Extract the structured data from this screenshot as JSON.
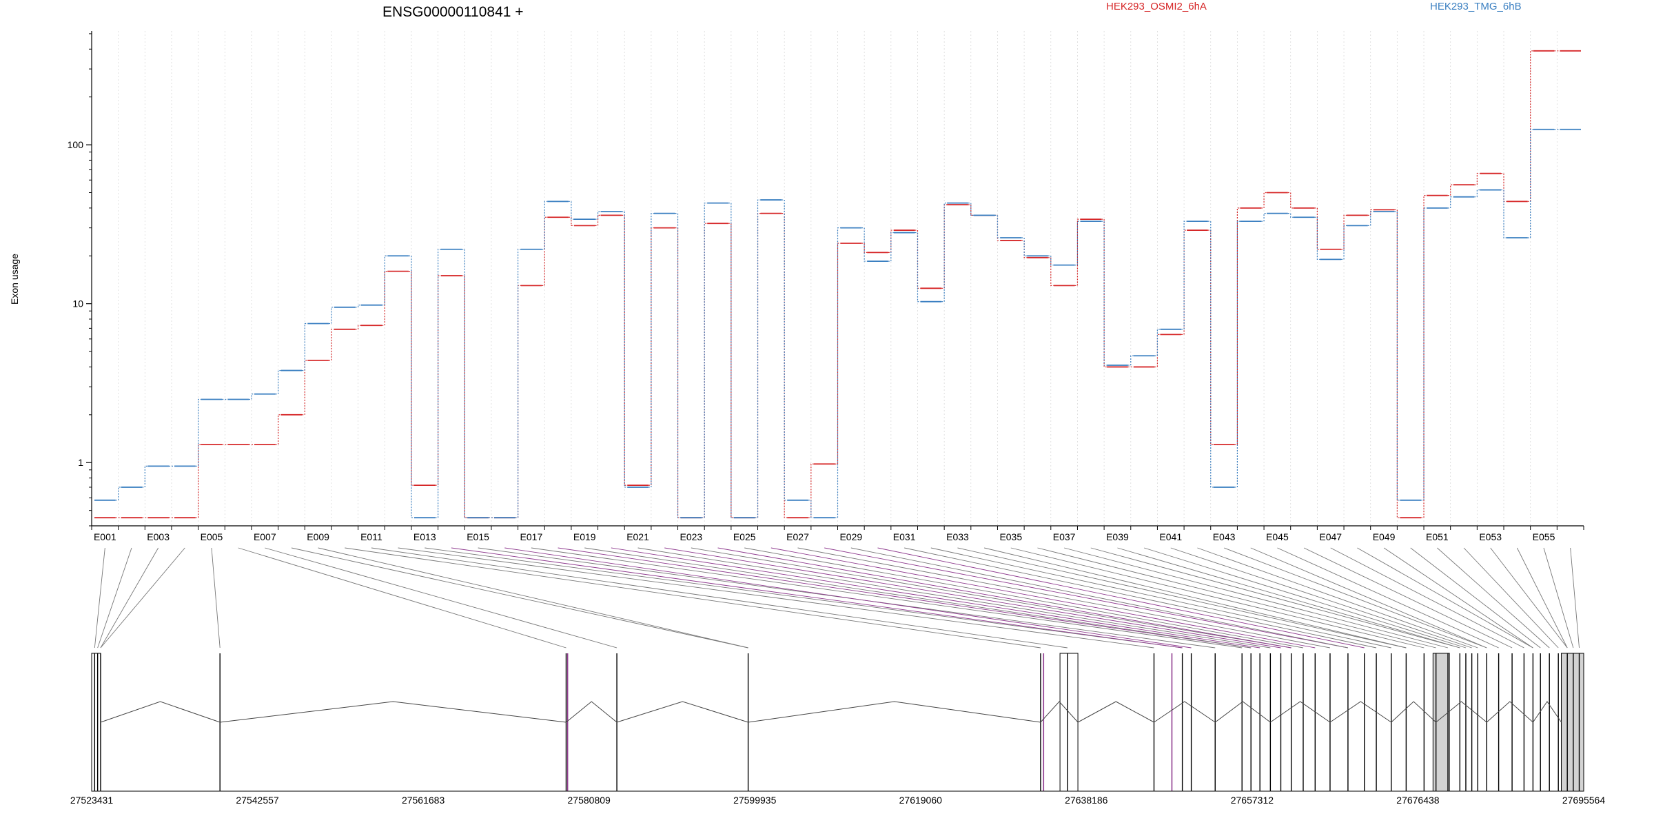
{
  "chart_data": {
    "type": "line",
    "title": "ENSG00000110841 +",
    "ylabel": "Exon usage",
    "xlabel": "",
    "y_scale": "log",
    "ylim": [
      0.4,
      520
    ],
    "y_ticks": [
      1,
      10,
      100
    ],
    "y_tick_labels": [
      "1",
      "10",
      "100"
    ],
    "grid": "vertical dotted lines per exon",
    "legend_placement": "top-right",
    "categories": [
      "E001",
      "E002",
      "E003",
      "E004",
      "E005",
      "E006",
      "E007",
      "E008",
      "E009",
      "E010",
      "E011",
      "E012",
      "E013",
      "E014",
      "E015",
      "E016",
      "E017",
      "E018",
      "E019",
      "E020",
      "E021",
      "E022",
      "E023",
      "E024",
      "E025",
      "E026",
      "E027",
      "E028",
      "E029",
      "E030",
      "E031",
      "E032",
      "E033",
      "E034",
      "E035",
      "E036",
      "E037",
      "E038",
      "E039",
      "E040",
      "E041",
      "E042",
      "E043",
      "E044",
      "E045",
      "E046",
      "E047",
      "E048",
      "E049",
      "E050",
      "E051",
      "E052",
      "E053",
      "E054",
      "E055",
      "E056"
    ],
    "x_tick_labels": [
      "E001",
      "E003",
      "E005",
      "E007",
      "E009",
      "E011",
      "E013",
      "E015",
      "E017",
      "E019",
      "E021",
      "E023",
      "E025",
      "E027",
      "E029",
      "E031",
      "E033",
      "E035",
      "E037",
      "E039",
      "E041",
      "E043",
      "E045",
      "E047",
      "E049",
      "E051",
      "E053",
      "E055"
    ],
    "series": [
      {
        "name": "HEK293_OSMI2_6hA",
        "color": "#d62728",
        "values": [
          0.45,
          0.45,
          0.45,
          0.45,
          1.3,
          1.3,
          1.3,
          2.0,
          4.4,
          6.9,
          7.3,
          16,
          0.72,
          15,
          0.45,
          0.45,
          13,
          35,
          31,
          36,
          0.72,
          30,
          0.45,
          32,
          0.45,
          37,
          0.45,
          0.98,
          24,
          21,
          29,
          12.5,
          42,
          36,
          25,
          19.5,
          13,
          34,
          4.0,
          4.0,
          6.4,
          29,
          1.3,
          40,
          50,
          40,
          22,
          36,
          39,
          0.45,
          48,
          56,
          66,
          44,
          390,
          390
        ]
      },
      {
        "name": "HEK293_TMG_6hB",
        "color": "#3a7fc1",
        "values": [
          0.58,
          0.7,
          0.95,
          0.95,
          2.5,
          2.5,
          2.7,
          3.8,
          7.5,
          9.5,
          9.8,
          20,
          0.45,
          22,
          0.45,
          0.45,
          22,
          44,
          34,
          38,
          0.7,
          37,
          0.45,
          43,
          0.45,
          45,
          0.58,
          0.45,
          30,
          18.5,
          28,
          10.3,
          43,
          36,
          26,
          20,
          17.5,
          33,
          4.1,
          4.7,
          6.9,
          33,
          0.7,
          33,
          37,
          35,
          19,
          31,
          38,
          0.58,
          40,
          47,
          52,
          26,
          125,
          125
        ]
      }
    ],
    "genomic_axis": {
      "tick_labels": [
        "27523431",
        "27542557",
        "27561683",
        "27580809",
        "27599935",
        "27619060",
        "27638186",
        "27657312",
        "27676438",
        "27695564"
      ],
      "range": [
        27523431,
        27695564
      ]
    }
  },
  "legend": {
    "series_a": "HEK293_OSMI2_6hA",
    "series_b": "HEK293_TMG_6hB"
  },
  "colors": {
    "series_a": "#d62728",
    "series_b": "#3a7fc1",
    "connector": "#777777",
    "highlight": "#8e3a8e",
    "exon_fill": "#d3d3d3"
  }
}
